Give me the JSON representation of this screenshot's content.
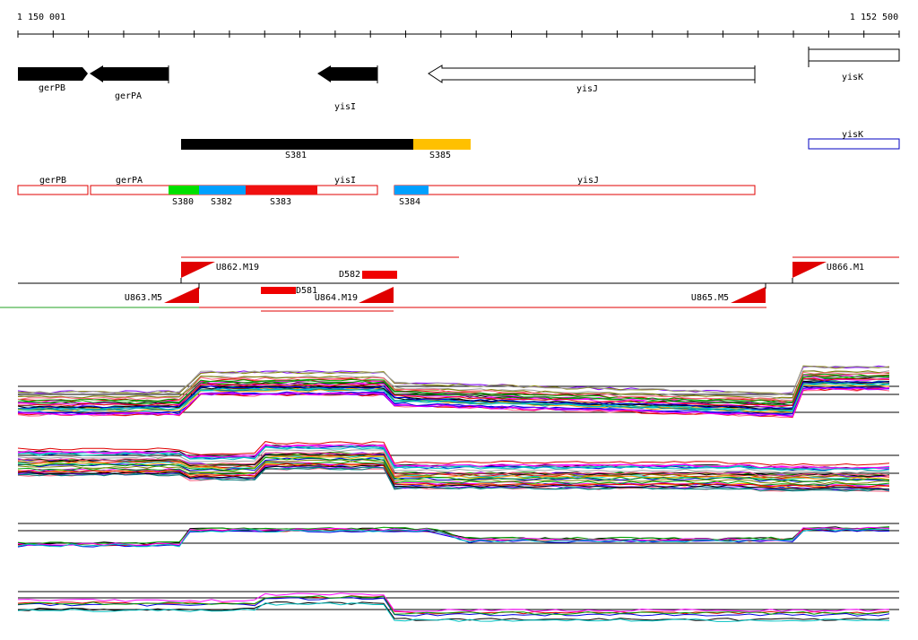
{
  "ruler": {
    "start": "1 150 001",
    "end": "1 152 500"
  },
  "genes": [
    "gerPB",
    "gerPA",
    "yisI",
    "yisJ",
    "yisK"
  ],
  "segments": {
    "top": [
      "S381",
      "S385"
    ],
    "right": "yisK"
  },
  "transcripts": {
    "genes": [
      "gerPB",
      "gerPA",
      "yisI",
      "yisJ"
    ],
    "segments": [
      "S380",
      "S382",
      "S383",
      "S384"
    ]
  },
  "features": [
    "U862.M19",
    "D582",
    "U866.M1",
    "U863.M5",
    "D581",
    "U864.M19",
    "U865.M5"
  ]
}
